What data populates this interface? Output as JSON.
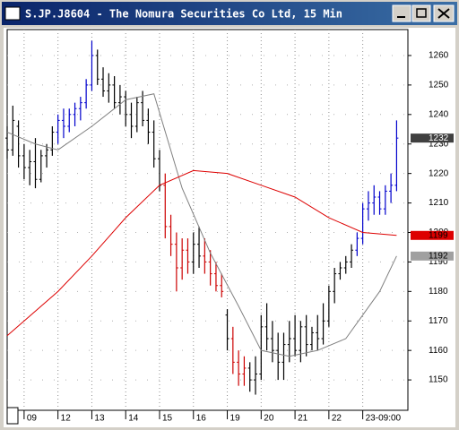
{
  "chart_data": {
    "type": "ohlc",
    "title": "S.JP.J8604 - The Nomura Securities Co Ltd, 15 Min",
    "xlim": [
      -3,
      68
    ],
    "xticks": [
      {
        "value": 0,
        "label": "09"
      },
      {
        "value": 6,
        "label": "12"
      },
      {
        "value": 12,
        "label": "13"
      },
      {
        "value": 18,
        "label": "14"
      },
      {
        "value": 24,
        "label": "15"
      },
      {
        "value": 30,
        "label": "16"
      },
      {
        "value": 36,
        "label": "19"
      },
      {
        "value": 42,
        "label": "20"
      },
      {
        "value": 48,
        "label": "21"
      },
      {
        "value": 54,
        "label": "22"
      },
      {
        "value": 60,
        "label": "23-09:00"
      }
    ],
    "ylim": [
      1139.7,
      1268.8
    ],
    "yticks": [
      1150,
      1160,
      1170,
      1180,
      1190,
      1200,
      1210,
      1220,
      1230,
      1240,
      1250,
      1260
    ],
    "grid": true,
    "bars": {
      "x": [
        -3,
        -2,
        -1,
        0,
        1,
        2,
        3,
        4,
        5,
        6,
        7,
        8,
        9,
        10,
        11,
        12,
        13,
        14,
        15,
        16,
        17,
        18,
        19,
        20,
        21,
        22,
        23,
        24,
        25,
        26,
        27,
        28,
        29,
        30,
        31,
        32,
        33,
        34,
        35,
        36,
        37,
        38,
        39,
        40,
        41,
        42,
        43,
        44,
        45,
        46,
        47,
        48,
        49,
        50,
        51,
        52,
        53,
        54,
        55,
        56,
        57,
        58,
        59,
        60,
        61,
        62,
        63,
        64,
        65,
        66
      ],
      "open": [
        1232,
        1228,
        1236,
        1226,
        1222,
        1224,
        1218,
        1226,
        1228,
        1234,
        1238,
        1236,
        1240,
        1242,
        1244,
        1250,
        1260,
        1252,
        1248,
        1250,
        1244,
        1246,
        1240,
        1236,
        1244,
        1238,
        1234,
        1225,
        1216,
        1202,
        1196,
        1188,
        1194,
        1190,
        1196,
        1192,
        1190,
        1186,
        1182,
        1172,
        1164,
        1156,
        1152,
        1154,
        1150,
        1152,
        1168,
        1164,
        1160,
        1156,
        1162,
        1164,
        1160,
        1168,
        1162,
        1166,
        1164,
        1170,
        1180,
        1186,
        1188,
        1190,
        1194,
        1198,
        1208,
        1210,
        1212,
        1208,
        1214,
        1216
      ],
      "high": [
        1236,
        1243,
        1238,
        1230,
        1228,
        1232,
        1228,
        1230,
        1236,
        1240,
        1242,
        1242,
        1244,
        1246,
        1252,
        1265,
        1262,
        1256,
        1254,
        1253,
        1250,
        1248,
        1244,
        1246,
        1248,
        1242,
        1238,
        1228,
        1220,
        1206,
        1200,
        1198,
        1198,
        1200,
        1202,
        1198,
        1194,
        1190,
        1186,
        1174,
        1168,
        1160,
        1158,
        1156,
        1158,
        1172,
        1176,
        1170,
        1166,
        1166,
        1170,
        1172,
        1170,
        1172,
        1168,
        1172,
        1176,
        1182,
        1188,
        1190,
        1192,
        1196,
        1200,
        1210,
        1214,
        1216,
        1214,
        1216,
        1220,
        1238
      ],
      "low": [
        1225,
        1226,
        1222,
        1218,
        1216,
        1215,
        1217,
        1222,
        1226,
        1230,
        1232,
        1234,
        1236,
        1238,
        1242,
        1248,
        1250,
        1246,
        1244,
        1242,
        1240,
        1236,
        1232,
        1234,
        1236,
        1230,
        1222,
        1214,
        1198,
        1192,
        1180,
        1184,
        1186,
        1186,
        1188,
        1186,
        1182,
        1180,
        1178,
        1160,
        1152,
        1148,
        1148,
        1146,
        1145,
        1150,
        1160,
        1156,
        1150,
        1150,
        1156,
        1158,
        1156,
        1158,
        1160,
        1160,
        1162,
        1168,
        1176,
        1184,
        1186,
        1188,
        1192,
        1196,
        1204,
        1206,
        1206,
        1206,
        1210,
        1214
      ],
      "close": [
        1228,
        1238,
        1226,
        1222,
        1224,
        1218,
        1226,
        1228,
        1234,
        1238,
        1236,
        1240,
        1242,
        1244,
        1250,
        1260,
        1252,
        1248,
        1250,
        1244,
        1246,
        1240,
        1236,
        1244,
        1238,
        1234,
        1225,
        1216,
        1202,
        1196,
        1188,
        1194,
        1190,
        1196,
        1192,
        1190,
        1186,
        1182,
        1180,
        1164,
        1156,
        1152,
        1154,
        1150,
        1152,
        1168,
        1164,
        1160,
        1156,
        1162,
        1164,
        1160,
        1168,
        1162,
        1166,
        1164,
        1170,
        1180,
        1186,
        1188,
        1190,
        1194,
        1198,
        1208,
        1210,
        1212,
        1208,
        1214,
        1216,
        1232
      ],
      "colors": [
        "#000000",
        "#000000",
        "#000000",
        "#000000",
        "#000000",
        "#000000",
        "#000000",
        "#000000",
        "#000000",
        "#0000cc",
        "#0000cc",
        "#0000cc",
        "#0000cc",
        "#0000cc",
        "#0000cc",
        "#0000cc",
        "#000000",
        "#000000",
        "#000000",
        "#000000",
        "#000000",
        "#000000",
        "#000000",
        "#000000",
        "#000000",
        "#000000",
        "#000000",
        "#000000",
        "#cc0000",
        "#cc0000",
        "#cc0000",
        "#cc0000",
        "#cc0000",
        "#000000",
        "#000000",
        "#cc0000",
        "#cc0000",
        "#cc0000",
        "#cc0000",
        "#000000",
        "#cc0000",
        "#cc0000",
        "#cc0000",
        "#000000",
        "#000000",
        "#000000",
        "#000000",
        "#000000",
        "#000000",
        "#000000",
        "#000000",
        "#000000",
        "#000000",
        "#000000",
        "#000000",
        "#000000",
        "#000000",
        "#000000",
        "#000000",
        "#000000",
        "#000000",
        "#000000",
        "#0000cc",
        "#0000cc",
        "#0000cc",
        "#0000cc",
        "#0000cc",
        "#0000cc",
        "#0000cc",
        "#0000cc"
      ]
    },
    "series": [
      {
        "color": "#808080",
        "x": [
          -3,
          2,
          6,
          12,
          18,
          23,
          28,
          33,
          38,
          42,
          47,
          52,
          57,
          60,
          63,
          66
        ],
        "values": [
          1234,
          1230,
          1228,
          1236,
          1245,
          1247,
          1215,
          1193,
          1175,
          1160,
          1158,
          1160,
          1164,
          1172,
          1180,
          1192
        ]
      },
      {
        "color": "#dd0000",
        "x": [
          -3,
          6,
          12,
          18,
          24,
          30,
          36,
          42,
          48,
          54,
          60,
          66
        ],
        "values": [
          1165,
          1180,
          1192,
          1205,
          1216,
          1221,
          1220,
          1216,
          1212,
          1205,
          1200,
          1199
        ]
      }
    ],
    "markers": [
      {
        "value": 1232,
        "color": "#404040",
        "text_color": "#ffffff"
      },
      {
        "value": 1199,
        "color": "#dd0000",
        "text_color": "#000000"
      },
      {
        "value": 1192,
        "color": "#a0a0a0",
        "text_color": "#000000"
      }
    ]
  }
}
